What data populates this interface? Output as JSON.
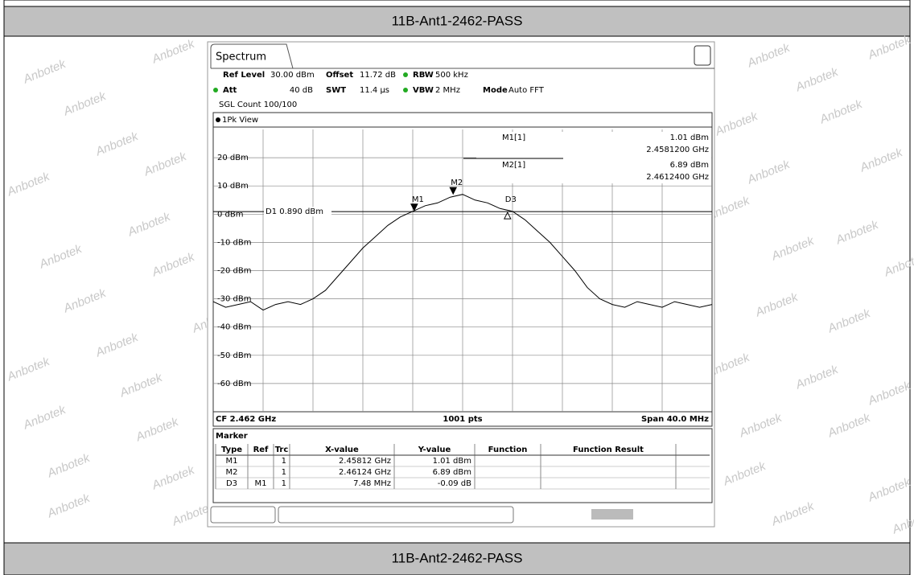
{
  "header": "11B-Ant1-2462-PASS",
  "footer": "11B-Ant2-2462-PASS",
  "watermark": "Anbotek",
  "analyzer": {
    "tab": "Spectrum",
    "row1": [
      {
        "label": "Ref Level",
        "value": "30.00 dBm"
      },
      {
        "label": "Offset",
        "value": "11.72 dB"
      },
      {
        "label": "RBW",
        "value": "500 kHz"
      }
    ],
    "row2": [
      {
        "label": "Att",
        "value": "40 dB"
      },
      {
        "label": "SWT",
        "value": "11.4 µs"
      },
      {
        "label": "VBW",
        "value": "2 MHz"
      },
      {
        "label": "Mode",
        "value": "Auto FFT"
      }
    ],
    "count": "SGL Count 100/100",
    "view": "1Pk View",
    "bottom": [
      "CF 2.462 GHz",
      "1001 pts",
      "Span 40.0 MHz"
    ]
  },
  "marker_table": {
    "title": "Marker",
    "columns": [
      "Type",
      "Ref",
      "Trc",
      "X-value",
      "Y-value",
      "Function",
      "Function Result"
    ],
    "rows": [
      [
        "M1",
        null,
        "1",
        "2.45812 GHz",
        "1.01 dBm",
        null,
        null
      ],
      [
        "M2",
        null,
        "1",
        "2.46124 GHz",
        "6.89 dBm",
        null,
        null
      ],
      [
        "D3",
        "M1",
        "1",
        "7.48 MHz",
        "-0.09 dB",
        null,
        null
      ]
    ]
  },
  "chart_data": {
    "type": "line",
    "color": "#000000",
    "x": [
      2.442,
      2.443,
      2.444,
      2.445,
      2.446,
      2.447,
      2.448,
      2.449,
      2.45,
      2.451,
      2.452,
      2.453,
      2.454,
      2.455,
      2.456,
      2.457,
      2.458,
      2.459,
      2.46,
      2.461,
      2.462,
      2.463,
      2.464,
      2.465,
      2.466,
      2.467,
      2.468,
      2.469,
      2.47,
      2.471,
      2.472,
      2.473,
      2.474,
      2.475,
      2.476,
      2.477,
      2.478,
      2.479,
      2.48,
      2.481,
      2.482
    ],
    "values": [
      -31,
      -33,
      -32,
      -31,
      -34,
      -32,
      -31,
      -32,
      -30,
      -27,
      -22,
      -17,
      -12,
      -8,
      -4,
      -1,
      1,
      3,
      4,
      6,
      7,
      5,
      4,
      2,
      1,
      -2,
      -6,
      -10,
      -15,
      -20,
      -26,
      -30,
      -32,
      -33,
      -31,
      -32,
      -33,
      -31,
      -32,
      -33,
      -32
    ],
    "xlim": [
      2.442,
      2.482
    ],
    "ylim": [
      -70,
      30
    ],
    "yticks": [
      {
        "value": 20,
        "label": "20 dBm"
      },
      {
        "value": 10,
        "label": "10 dBm"
      },
      {
        "value": 0,
        "label": "0 dBm"
      },
      {
        "value": -10,
        "label": "-10 dBm"
      },
      {
        "value": -20,
        "label": "-20 dBm"
      },
      {
        "value": -30,
        "label": "-30 dBm"
      },
      {
        "value": -40,
        "label": "-40 dBm"
      },
      {
        "value": -50,
        "label": "-50 dBm"
      },
      {
        "value": -60,
        "label": "-60 dBm"
      }
    ],
    "grid": true,
    "d1": {
      "label": "D1 0.890 dBm",
      "value": 0.89
    },
    "markers": [
      {
        "name": "M1",
        "x": 2.45812,
        "y": 1.01
      },
      {
        "name": "M2",
        "x": 2.46124,
        "y": 6.89
      },
      {
        "name": "D3",
        "x": 2.4656,
        "y": 0.92
      }
    ],
    "readout": [
      {
        "name": "M1[1]",
        "value": "1.01 dBm",
        "freq": "2.4581200 GHz"
      },
      {
        "name": "M2[1]",
        "value": "6.89 dBm",
        "freq": "2.4612400 GHz"
      }
    ]
  }
}
